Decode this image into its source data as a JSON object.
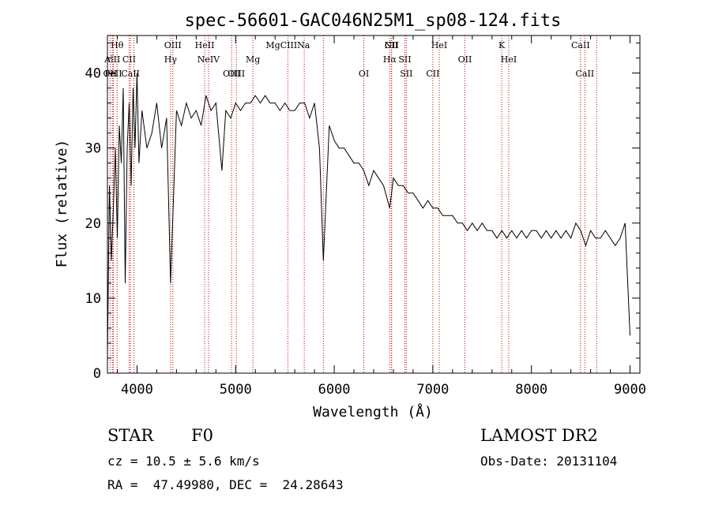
{
  "chart_data": {
    "type": "line",
    "title": "spec-56601-GAC046N25M1_sp08-124.fits",
    "xlabel": "Wavelength (Å)",
    "ylabel": "Flux (relative)",
    "xlim": [
      3700,
      9100
    ],
    "ylim": [
      0,
      45
    ],
    "xticks": [
      4000,
      5000,
      6000,
      7000,
      8000,
      9000
    ],
    "yticks": [
      0,
      10,
      20,
      30,
      40
    ],
    "grid": false,
    "series": [
      {
        "x": [
          3700,
          3720,
          3740,
          3760,
          3780,
          3800,
          3820,
          3840,
          3860,
          3880,
          3900,
          3920,
          3940,
          3960,
          3980,
          4000,
          4020,
          4050,
          4100,
          4150,
          4200,
          4250,
          4300,
          4340,
          4400,
          4450,
          4500,
          4550,
          4600,
          4650,
          4700,
          4750,
          4800,
          4861,
          4900,
          4950,
          5000,
          5050,
          5100,
          5150,
          5200,
          5250,
          5300,
          5350,
          5400,
          5450,
          5500,
          5550,
          5600,
          5650,
          5700,
          5750,
          5800,
          5850,
          5890,
          5950,
          6000,
          6050,
          6100,
          6150,
          6200,
          6250,
          6300,
          6350,
          6400,
          6450,
          6500,
          6563,
          6600,
          6650,
          6700,
          6750,
          6800,
          6850,
          6900,
          6950,
          7000,
          7050,
          7100,
          7150,
          7200,
          7250,
          7300,
          7350,
          7400,
          7450,
          7500,
          7550,
          7600,
          7650,
          7700,
          7750,
          7800,
          7850,
          7900,
          7950,
          8000,
          8050,
          8100,
          8150,
          8200,
          8250,
          8300,
          8350,
          8400,
          8450,
          8500,
          8550,
          8600,
          8650,
          8700,
          8750,
          8800,
          8850,
          8900,
          8950,
          9000
        ],
        "y": [
          2,
          25,
          15,
          22,
          30,
          18,
          33,
          28,
          38,
          12,
          30,
          36,
          25,
          38,
          30,
          40,
          28,
          35,
          30,
          32,
          36,
          30,
          34,
          12,
          35,
          33,
          36,
          34,
          35,
          33,
          37,
          35,
          36,
          27,
          35,
          34,
          36,
          35,
          36,
          36,
          37,
          36,
          37,
          36,
          36,
          35,
          36,
          35,
          35,
          36,
          36,
          34,
          36,
          30,
          15,
          33,
          31,
          30,
          30,
          29,
          28,
          28,
          27,
          25,
          27,
          26,
          25,
          22,
          26,
          25,
          25,
          24,
          24,
          23,
          22,
          23,
          22,
          22,
          21,
          21,
          21,
          20,
          20,
          19,
          20,
          19,
          20,
          19,
          19,
          18,
          19,
          18,
          19,
          18,
          19,
          18,
          19,
          19,
          18,
          19,
          18,
          19,
          18,
          19,
          18,
          20,
          19,
          17,
          19,
          18,
          18,
          19,
          18,
          17,
          18,
          20,
          5
        ]
      }
    ],
    "line_markers": [
      {
        "label": "Hθ",
        "x": 3798,
        "row": 1
      },
      {
        "label": "AlII",
        "x": 3750,
        "row": 2
      },
      {
        "label": "OII",
        "x": 3727,
        "row": 3
      },
      {
        "label": "FeII",
        "x": 3760,
        "row": 3
      },
      {
        "label": "CaII",
        "x": 3934,
        "row": 3
      },
      {
        "label": "CII",
        "x": 3920,
        "row": 2
      },
      {
        "label": "",
        "x": 3968,
        "row": 0
      },
      {
        "label": "OIII",
        "x": 4363,
        "row": 1
      },
      {
        "label": "Hγ",
        "x": 4340,
        "row": 2
      },
      {
        "label": "HeII",
        "x": 4686,
        "row": 1
      },
      {
        "label": "NeIV",
        "x": 4725,
        "row": 2
      },
      {
        "label": "OIII",
        "x": 4959,
        "row": 3
      },
      {
        "label": "OIII",
        "x": 5007,
        "row": 3
      },
      {
        "label": "Mg",
        "x": 5175,
        "row": 2
      },
      {
        "label": "MgCIIINa",
        "x": 5530,
        "row": 1
      },
      {
        "label": "",
        "x": 5696,
        "row": 0
      },
      {
        "label": "",
        "x": 5890,
        "row": 0
      },
      {
        "label": "OI",
        "x": 6300,
        "row": 3
      },
      {
        "label": "NII",
        "x": 6583,
        "row": 1
      },
      {
        "label": "Hα",
        "x": 6563,
        "row": 2
      },
      {
        "label": "SII",
        "x": 6716,
        "row": 2
      },
      {
        "label": "SII",
        "x": 6731,
        "row": 3
      },
      {
        "label": "CII",
        "x": 6580,
        "row": 0
      },
      {
        "label": "CII",
        "x": 7000,
        "row": 3
      },
      {
        "label": "OII",
        "x": 7325,
        "row": 2
      },
      {
        "label": "K",
        "x": 7699,
        "row": 1
      },
      {
        "label": "HeI",
        "x": 7065,
        "row": 0
      },
      {
        "label": "HeI",
        "x": 7770,
        "row": 2
      },
      {
        "label": "CaII",
        "x": 8498,
        "row": 1
      },
      {
        "label": "CaII",
        "x": 8542,
        "row": 3
      },
      {
        "label": "",
        "x": 8662,
        "row": 0
      }
    ]
  },
  "info": {
    "class_label": "STAR",
    "subclass": "F0",
    "survey": "LAMOST DR2",
    "redshift": "cz = 10.5 ± 5.6 km/s",
    "obs_date": "Obs-Date: 20131104",
    "coords": "RA =  47.49980, DEC =  24.28643"
  }
}
